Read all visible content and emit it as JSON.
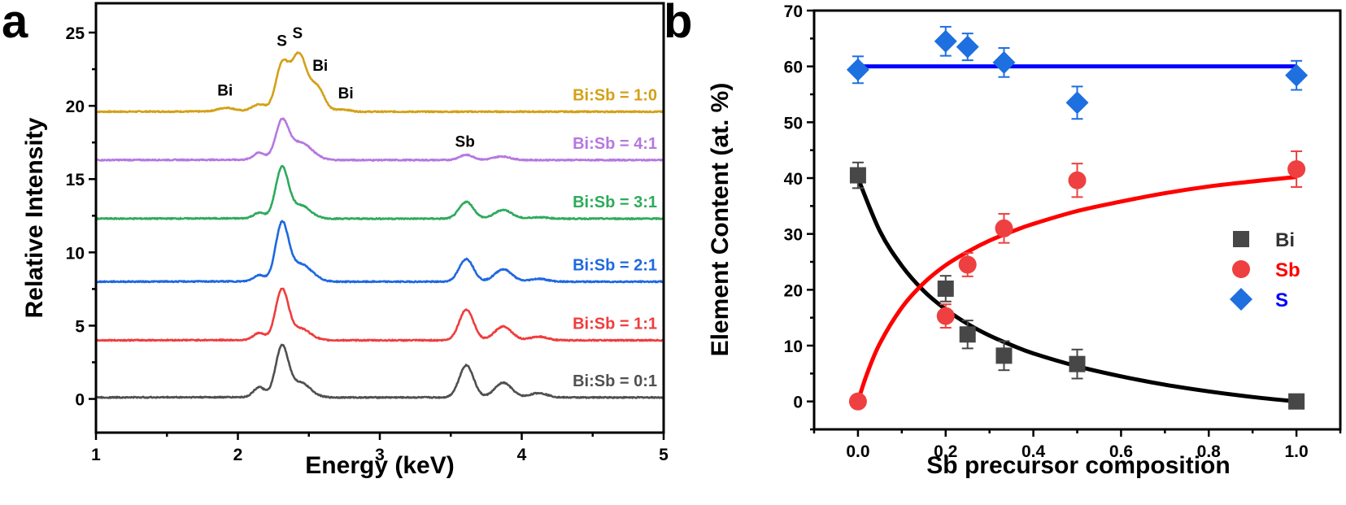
{
  "panel_labels": {
    "a": "a",
    "b": "b"
  },
  "chart_data": [
    {
      "type": "line",
      "panel": "a",
      "title": "",
      "xlabel": "Energy (keV)",
      "ylabel": "Relative Intensity",
      "xlim": [
        1,
        5
      ],
      "ylim": [
        -2.3,
        27
      ],
      "xticks": [
        1,
        2,
        3,
        4,
        5
      ],
      "xtick_labels": [
        "1",
        "2",
        "3",
        "4",
        "5"
      ],
      "yticks": [
        0,
        5,
        10,
        15,
        20,
        25
      ],
      "ytick_labels": [
        "0",
        "5",
        "10",
        "15",
        "20",
        "25"
      ],
      "grid": false,
      "annotations": [
        {
          "text": "Bi",
          "x": 1.91,
          "y": 20.7
        },
        {
          "text": "S",
          "x": 2.31,
          "y": 24.1
        },
        {
          "text": "S",
          "x": 2.42,
          "y": 24.6
        },
        {
          "text": "Bi",
          "x": 2.58,
          "y": 22.4
        },
        {
          "text": "Bi",
          "x": 2.76,
          "y": 20.5
        },
        {
          "text": "Sb",
          "x": 3.6,
          "y": 17.2
        }
      ],
      "series": [
        {
          "name": "Bi:Sb = 1:0",
          "color": "#d4a017",
          "baseline": 19.6,
          "peaks": [
            [
              1.92,
              0.25,
              0.06
            ],
            [
              2.15,
              0.5,
              0.05
            ],
            [
              2.31,
              3.1,
              0.045
            ],
            [
              2.43,
              3.9,
              0.055
            ],
            [
              2.56,
              1.6,
              0.05
            ],
            [
              2.74,
              0.15,
              0.05
            ]
          ]
        },
        {
          "name": "Bi:Sb = 4:1",
          "color": "#b678e0",
          "baseline": 16.3,
          "peaks": [
            [
              2.15,
              0.5,
              0.04
            ],
            [
              2.31,
              2.5,
              0.045
            ],
            [
              2.44,
              1.2,
              0.08
            ],
            [
              3.61,
              0.35,
              0.05
            ],
            [
              3.86,
              0.25,
              0.06
            ]
          ]
        },
        {
          "name": "Bi:Sb = 3:1",
          "color": "#2eaa5c",
          "baseline": 12.3,
          "peaks": [
            [
              2.15,
              0.4,
              0.04
            ],
            [
              2.31,
              3.4,
              0.045
            ],
            [
              2.44,
              0.9,
              0.07
            ],
            [
              3.61,
              1.15,
              0.05
            ],
            [
              3.87,
              0.6,
              0.06
            ],
            [
              4.12,
              0.1,
              0.06
            ]
          ]
        },
        {
          "name": "Bi:Sb = 2:1",
          "color": "#1e68e0",
          "baseline": 8.0,
          "peaks": [
            [
              2.15,
              0.45,
              0.04
            ],
            [
              2.31,
              3.8,
              0.045
            ],
            [
              2.44,
              1.2,
              0.08
            ],
            [
              3.61,
              1.55,
              0.05
            ],
            [
              3.87,
              0.85,
              0.06
            ],
            [
              4.12,
              0.2,
              0.06
            ]
          ]
        },
        {
          "name": "Bi:Sb = 1:1",
          "color": "#f03c3c",
          "baseline": 4.0,
          "peaks": [
            [
              2.15,
              0.5,
              0.04
            ],
            [
              2.31,
              3.4,
              0.045
            ],
            [
              2.44,
              0.8,
              0.07
            ],
            [
              3.61,
              2.1,
              0.05
            ],
            [
              3.87,
              0.95,
              0.06
            ],
            [
              4.12,
              0.25,
              0.06
            ]
          ]
        },
        {
          "name": "Bi:Sb = 0:1",
          "color": "#505050",
          "baseline": 0.1,
          "peaks": [
            [
              2.15,
              0.7,
              0.04
            ],
            [
              2.31,
              3.4,
              0.045
            ],
            [
              2.44,
              1.0,
              0.07
            ],
            [
              3.61,
              2.2,
              0.05
            ],
            [
              3.87,
              1.0,
              0.06
            ],
            [
              4.12,
              0.3,
              0.06
            ]
          ]
        }
      ]
    },
    {
      "type": "scatter",
      "panel": "b",
      "title": "",
      "xlabel": "Sb precursor composition",
      "ylabel": "Element Content (at. %)",
      "xlim": [
        -0.1,
        1.1
      ],
      "ylim": [
        -5,
        70
      ],
      "xticks": [
        0.0,
        0.2,
        0.4,
        0.6,
        0.8,
        1.0
      ],
      "xtick_labels": [
        "0.0",
        "0.2",
        "0.4",
        "0.6",
        "0.8",
        "1.0"
      ],
      "yticks": [
        0,
        10,
        20,
        30,
        40,
        50,
        60,
        70
      ],
      "ytick_labels": [
        "0",
        "10",
        "20",
        "30",
        "40",
        "50",
        "60",
        "70"
      ],
      "grid": false,
      "legend": {
        "position": "right-middle"
      },
      "series": [
        {
          "name": "Bi",
          "marker": "square",
          "color": "#474747",
          "label_color": "#333333",
          "fit_color": "#000000",
          "x": [
            0.0,
            0.2,
            0.25,
            0.333,
            0.5,
            1.0
          ],
          "y": [
            40.5,
            20.2,
            12.0,
            8.2,
            6.7,
            0.0
          ],
          "err": [
            2.3,
            2.3,
            2.5,
            2.6,
            2.6,
            0.0
          ],
          "fit": {
            "type": "curve",
            "x": [
              0.0,
              0.05,
              0.1,
              0.15,
              0.2,
              0.25,
              0.3,
              0.35,
              0.4,
              0.5,
              0.6,
              0.7,
              0.8,
              0.9,
              1.0
            ],
            "y": [
              40.0,
              30.5,
              24.3,
              19.8,
              16.5,
              13.9,
              11.8,
              10.1,
              8.6,
              6.3,
              4.5,
              3.0,
              1.8,
              0.8,
              0.0
            ]
          }
        },
        {
          "name": "Sb",
          "marker": "circle",
          "color": "#ee4040",
          "label_color": "#ff0000",
          "fit_color": "#ff0000",
          "x": [
            0.0,
            0.2,
            0.25,
            0.333,
            0.5,
            1.0
          ],
          "y": [
            0.0,
            15.3,
            24.5,
            31.0,
            39.6,
            41.6
          ],
          "err": [
            0.0,
            2.1,
            2.1,
            2.6,
            3.0,
            3.2
          ],
          "fit": {
            "type": "curve",
            "x": [
              0.0,
              0.02,
              0.05,
              0.1,
              0.15,
              0.2,
              0.25,
              0.3,
              0.35,
              0.4,
              0.5,
              0.6,
              0.7,
              0.8,
              0.9,
              1.0
            ],
            "y": [
              0.0,
              4.8,
              10.4,
              16.8,
              21.2,
              24.4,
              26.8,
              28.8,
              30.4,
              31.8,
              34.1,
              35.8,
              37.3,
              38.5,
              39.4,
              40.2
            ]
          }
        },
        {
          "name": "S",
          "marker": "diamond",
          "color": "#1e6fe0",
          "label_color": "#0000ff",
          "fit_color": "#0000ff",
          "x": [
            0.0,
            0.2,
            0.25,
            0.333,
            0.5,
            1.0
          ],
          "y": [
            59.4,
            64.5,
            63.5,
            60.7,
            53.5,
            58.4
          ],
          "err": [
            2.4,
            2.6,
            2.4,
            2.6,
            2.9,
            2.6
          ],
          "fit": {
            "type": "line",
            "x": [
              0.0,
              1.0
            ],
            "y": [
              60.0,
              60.0
            ]
          }
        }
      ]
    }
  ]
}
